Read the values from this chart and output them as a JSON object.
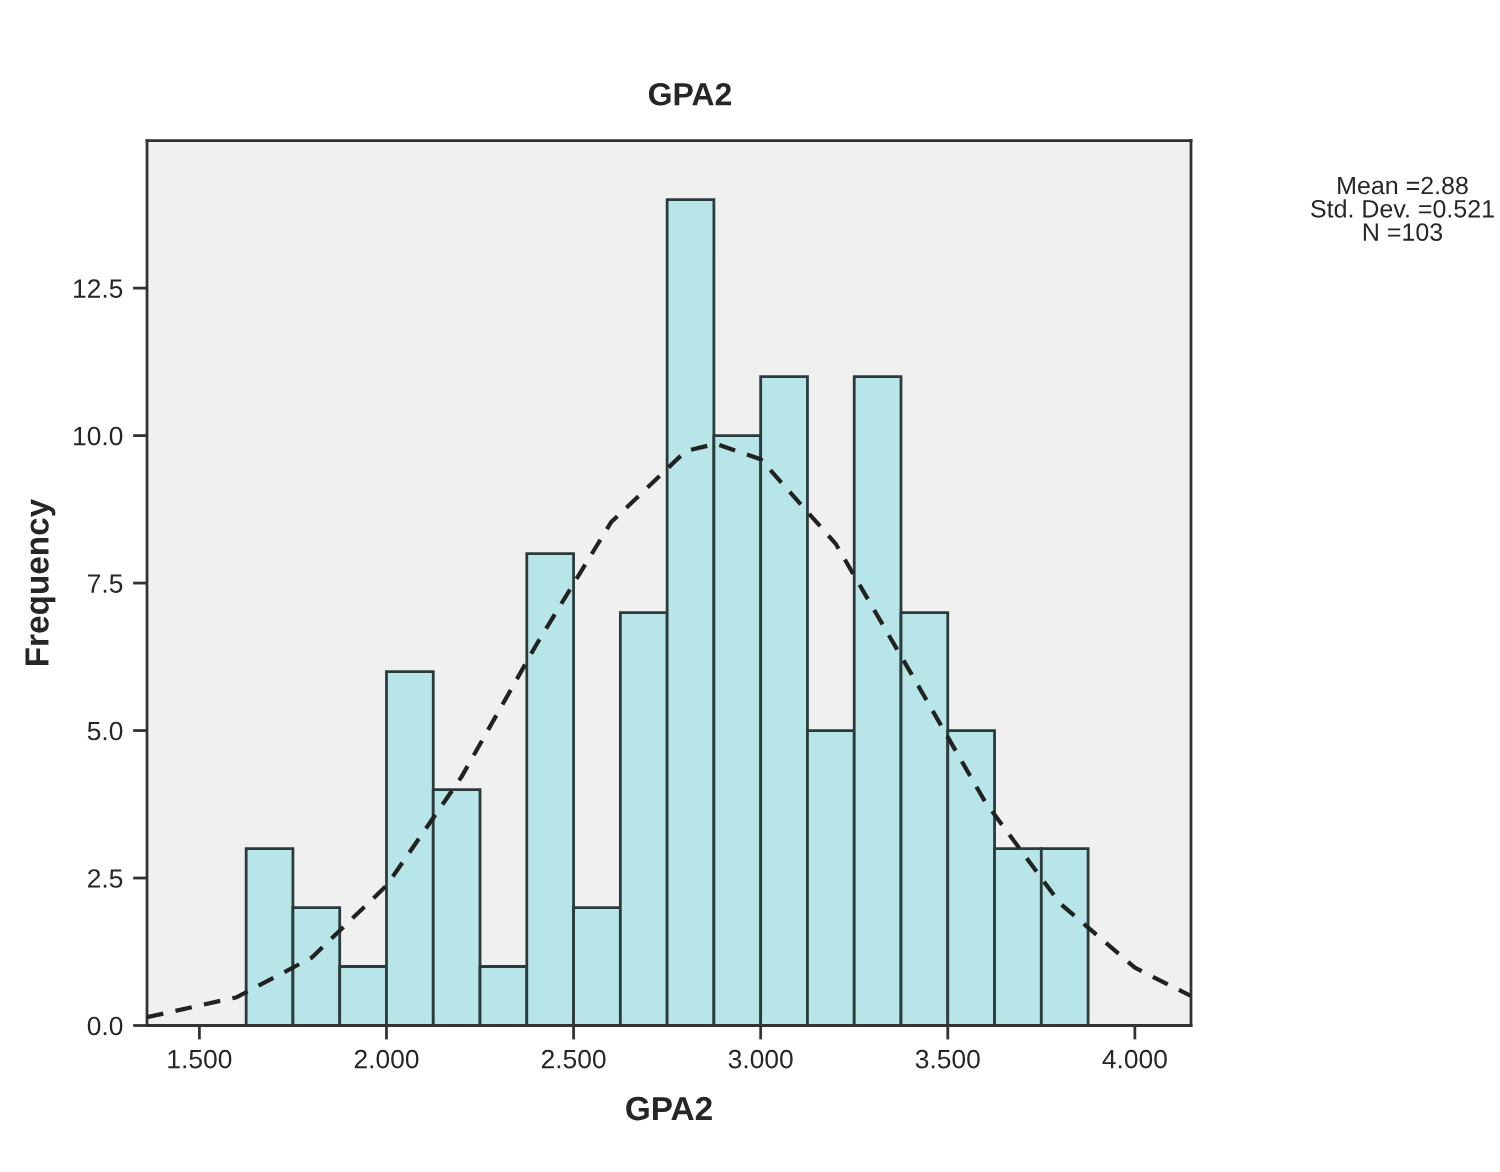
{
  "chart_data": {
    "type": "histogram",
    "title": "GPA2",
    "xlabel": "GPA2",
    "ylabel": "Frequency",
    "bins": [
      1.625,
      1.75,
      1.875,
      2.0,
      2.125,
      2.25,
      2.375,
      2.5,
      2.625,
      2.75,
      2.875,
      3.0,
      3.125,
      3.25,
      3.375,
      3.5,
      3.625,
      3.75,
      3.875
    ],
    "values": [
      3,
      2,
      1,
      6,
      4,
      1,
      8,
      2,
      7,
      14,
      10,
      11,
      5,
      11,
      7,
      5,
      3,
      3
    ],
    "color": "#b8e6e8",
    "series": [
      {
        "type": "line",
        "color": "#222222",
        "line_style": "dashed",
        "x": [
          1.36,
          1.6,
          1.8,
          2.0,
          2.2,
          2.4,
          2.6,
          2.8,
          2.88,
          3.0,
          3.2,
          3.4,
          3.6,
          3.8,
          4.0,
          4.15
        ],
        "values": [
          0.14,
          0.48,
          1.15,
          2.37,
          4.21,
          6.45,
          8.53,
          9.74,
          9.86,
          9.6,
          8.17,
          5.99,
          3.79,
          2.07,
          0.98,
          0.5
        ]
      }
    ],
    "xlim": [
      1.36,
      4.15
    ],
    "ylim": [
      0,
      15
    ],
    "xticks": [
      {
        "value": 1.5,
        "label": "1.500"
      },
      {
        "value": 2.0,
        "label": "2.000"
      },
      {
        "value": 2.5,
        "label": "2.500"
      },
      {
        "value": 3.0,
        "label": "3.000"
      },
      {
        "value": 3.5,
        "label": "3.500"
      },
      {
        "value": 4.0,
        "label": "4.000"
      }
    ],
    "yticks": [
      {
        "value": 0,
        "label": "0.0"
      },
      2.5,
      {
        "value": 5,
        "label": "5.0"
      },
      7.5,
      {
        "value": 10,
        "label": "10.0"
      },
      12.5
    ],
    "grid": false,
    "legend": false,
    "annotations": [
      "Mean =2.88",
      "Std. Dev. =0.521",
      "N =103"
    ]
  }
}
